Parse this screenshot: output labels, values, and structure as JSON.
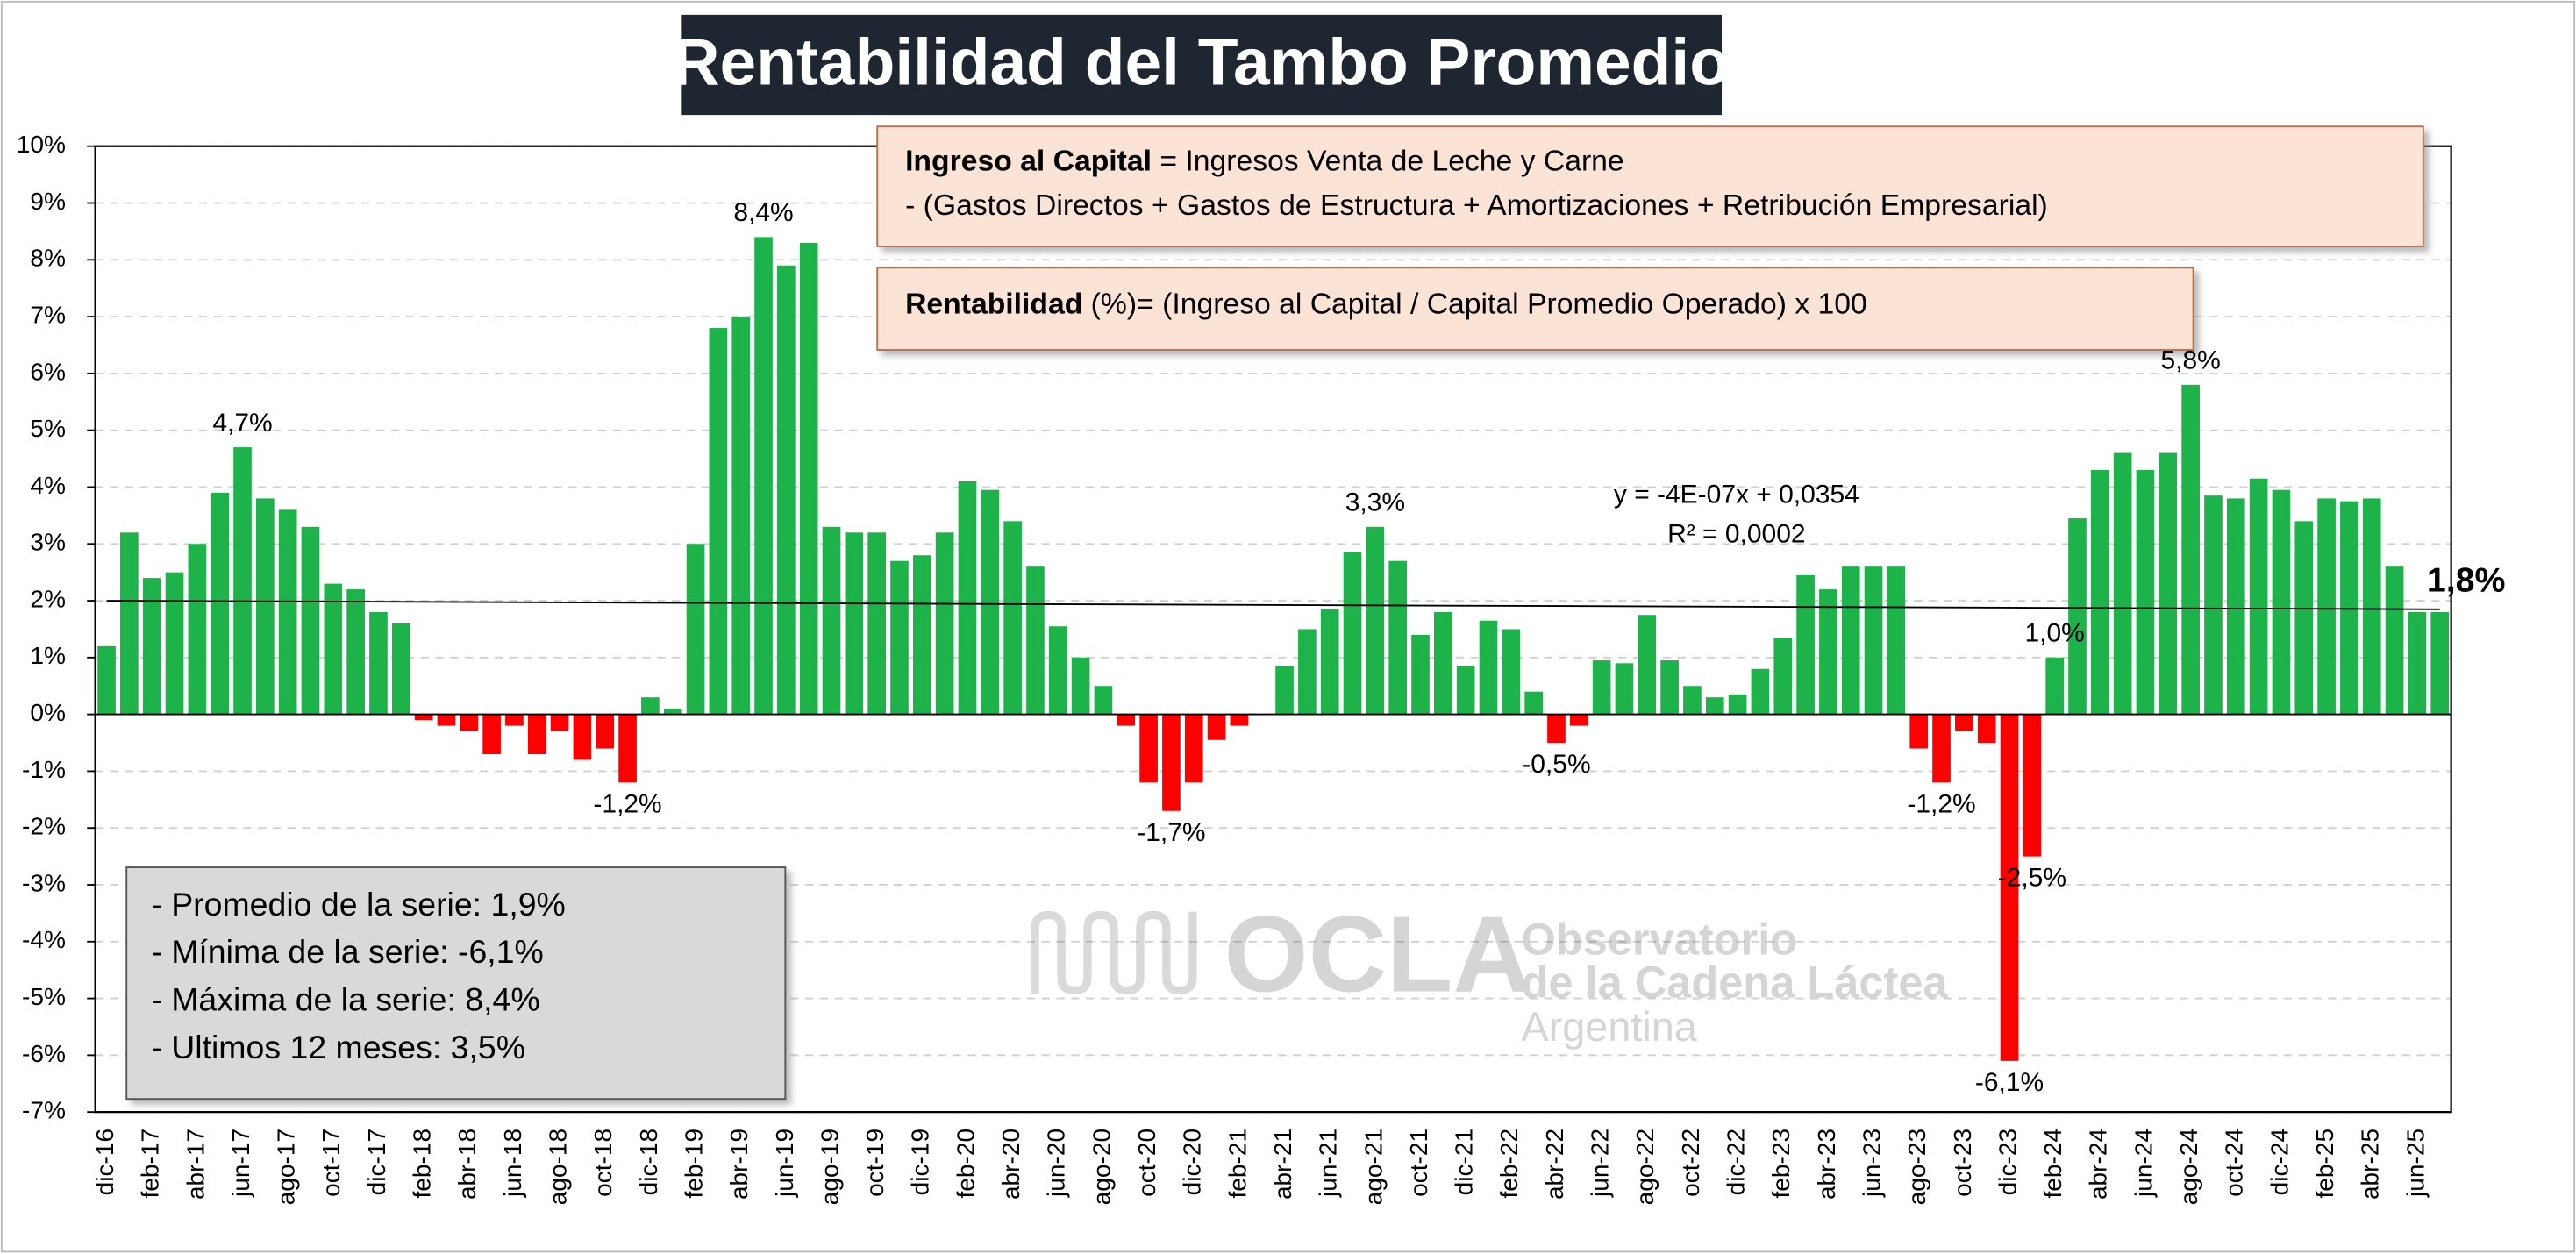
{
  "chart_data": {
    "type": "bar",
    "title": "Rentabilidad del Tambo Promedio",
    "formula_box_1": {
      "bold": "Ingreso al Capital",
      "line1": " = Ingresos Venta de Leche y Carne",
      "line2": "-  (Gastos Directos + Gastos de Estructura  + Amortizaciones +  Retribución Empresarial)"
    },
    "formula_box_2": {
      "bold": "Rentabilidad",
      "text": " (%)= (Ingreso al Capital / Capital Promedio Operado) x 100"
    },
    "stats": [
      "- Promedio de la serie: 1,9%",
      "- Mínima de la serie: -6,1%",
      "- Máxima de la serie: 8,4%",
      "- Ultimos 12 meses: 3,5%"
    ],
    "logo": {
      "name": "OCLA",
      "line1": "Observatorio",
      "line2": "de la Cadena Láctea",
      "line3": "Argentina"
    },
    "categories": [
      "dic-16",
      null,
      "feb-17",
      null,
      "abr-17",
      null,
      "jun-17",
      null,
      "ago-17",
      null,
      "oct-17",
      null,
      "dic-17",
      null,
      "feb-18",
      null,
      "abr-18",
      null,
      "jun-18",
      null,
      "ago-18",
      null,
      "oct-18",
      null,
      "dic-18",
      null,
      "feb-19",
      null,
      "abr-19",
      null,
      "jun-19",
      null,
      "ago-19",
      null,
      "oct-19",
      null,
      "dic-19",
      null,
      "feb-20",
      null,
      "abr-20",
      null,
      "jun-20",
      null,
      "ago-20",
      null,
      "oct-20",
      null,
      "dic-20",
      null,
      "feb-21",
      null,
      "abr-21",
      null,
      "jun-21",
      null,
      "ago-21",
      null,
      "oct-21",
      null,
      "dic-21",
      null,
      "feb-22",
      null,
      "abr-22",
      null,
      "jun-22",
      null,
      "ago-22",
      null,
      "oct-22",
      null,
      "dic-22",
      null,
      "feb-23",
      null,
      "abr-23",
      null,
      "jun-23",
      null,
      "ago-23",
      null,
      "oct-23",
      null,
      "dic-23",
      null,
      "feb-24",
      null,
      "abr-24",
      null,
      "jun-24",
      null,
      "ago-24",
      null,
      "oct-24",
      null,
      "dic-24",
      null,
      "feb-25",
      null,
      "abr-25",
      null,
      "jun-25",
      null
    ],
    "values": [
      1.2,
      3.2,
      2.4,
      2.5,
      3.0,
      3.9,
      4.7,
      3.8,
      3.6,
      3.3,
      2.3,
      2.2,
      1.8,
      1.6,
      -0.1,
      -0.2,
      -0.3,
      -0.7,
      -0.2,
      -0.7,
      -0.3,
      -0.8,
      -0.6,
      -1.2,
      0.3,
      0.1,
      3.0,
      6.8,
      7.0,
      8.4,
      7.9,
      8.3,
      3.3,
      3.2,
      3.2,
      2.7,
      2.8,
      3.2,
      4.1,
      3.95,
      3.4,
      2.6,
      1.55,
      1.0,
      0.5,
      -0.2,
      -1.2,
      -1.7,
      -1.2,
      -0.45,
      -0.2,
      0.0,
      0.85,
      1.5,
      1.85,
      2.85,
      3.3,
      2.7,
      1.4,
      1.8,
      0.85,
      1.65,
      1.5,
      0.4,
      -0.5,
      -0.2,
      0.95,
      0.9,
      1.75,
      0.95,
      0.5,
      0.3,
      0.35,
      0.8,
      1.35,
      2.45,
      2.2,
      2.6,
      2.6,
      2.6,
      -0.6,
      -1.2,
      -0.3,
      -0.5,
      -6.1,
      -2.5,
      1.0,
      3.45,
      4.3,
      4.6,
      4.3,
      4.6,
      5.8,
      3.85,
      3.8,
      4.15,
      3.95,
      3.4,
      3.8,
      3.75,
      3.8,
      2.6,
      1.8,
      1.8
    ],
    "value_labels": [
      null,
      null,
      null,
      null,
      null,
      null,
      "4,7%",
      null,
      null,
      null,
      null,
      null,
      null,
      null,
      null,
      null,
      null,
      null,
      null,
      null,
      null,
      null,
      null,
      "-1,2%",
      null,
      null,
      null,
      null,
      null,
      "8,4%",
      null,
      null,
      null,
      null,
      null,
      null,
      null,
      null,
      null,
      null,
      null,
      null,
      null,
      null,
      null,
      null,
      null,
      "-1,7%",
      null,
      null,
      null,
      null,
      null,
      null,
      null,
      null,
      "3,3%",
      null,
      null,
      null,
      null,
      null,
      null,
      null,
      "-0,5%",
      null,
      null,
      null,
      null,
      null,
      null,
      null,
      null,
      null,
      null,
      null,
      null,
      null,
      null,
      null,
      null,
      "-1,2%",
      null,
      null,
      "-6,1%",
      "-2,5%",
      "1,0%",
      null,
      null,
      null,
      null,
      null,
      "5,8%",
      null,
      null,
      null,
      null,
      null,
      null,
      null,
      null,
      null,
      null,
      "1,8%"
    ],
    "positive_color": "#1db34a",
    "negative_color": "#ff0000",
    "trendline": {
      "start": 2.0,
      "end": 1.85,
      "equation": "y = -4E-07x + 0,0354",
      "r2": "R² = 0,0002"
    },
    "ylim": [
      -7,
      10
    ],
    "yticks": [
      {
        "value": -7,
        "label": "-7%"
      },
      {
        "value": -6,
        "label": "-6%"
      },
      {
        "value": -5,
        "label": "-5%"
      },
      {
        "value": -4,
        "label": "-4%"
      },
      {
        "value": -3,
        "label": "-3%"
      },
      {
        "value": -2,
        "label": "-2%"
      },
      {
        "value": -1,
        "label": "-1%"
      },
      {
        "value": 0,
        "label": "0%"
      },
      {
        "value": 1,
        "label": "1%"
      },
      {
        "value": 2,
        "label": "2%"
      },
      {
        "value": 3,
        "label": "3%"
      },
      {
        "value": 4,
        "label": "4%"
      },
      {
        "value": 5,
        "label": "5%"
      },
      {
        "value": 6,
        "label": "6%"
      },
      {
        "value": 7,
        "label": "7%"
      },
      {
        "value": 8,
        "label": "8%"
      },
      {
        "value": 9,
        "label": "9%"
      },
      {
        "value": 10,
        "label": "10%"
      }
    ],
    "grid": true
  }
}
